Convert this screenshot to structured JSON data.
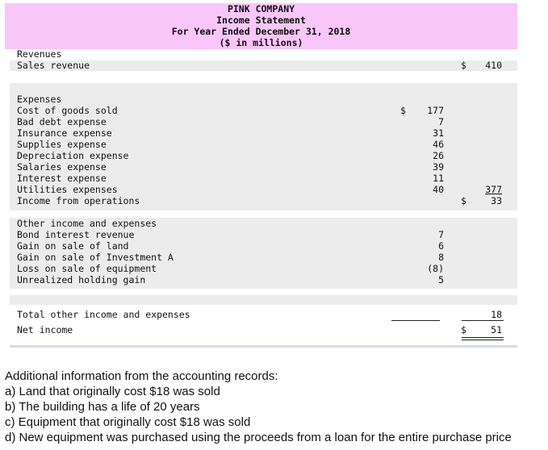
{
  "header": {
    "company": "PINK COMPANY",
    "title": "Income Statement",
    "period": "For Year Ended December 31, 2018",
    "units": "($ in millions)"
  },
  "revenues": {
    "section_label": "Revenues",
    "sales_label": "Sales revenue",
    "sales_currency": "$",
    "sales_value": "410"
  },
  "expenses": {
    "section_label": "Expenses",
    "first_currency": "$",
    "items": [
      {
        "label": "Cost of goods sold",
        "value": "177"
      },
      {
        "label": "Bad debt expense",
        "value": "7"
      },
      {
        "label": "Insurance expense",
        "value": "31"
      },
      {
        "label": "Supplies expense",
        "value": "46"
      },
      {
        "label": "Depreciation expense",
        "value": "26"
      },
      {
        "label": "Salaries expense",
        "value": "39"
      },
      {
        "label": "Interest expense",
        "value": "11"
      },
      {
        "label": "Utilities expenses",
        "value": "40"
      }
    ],
    "total_value": "377",
    "operations_label": "Income from operations",
    "operations_currency": "$",
    "operations_value": "33"
  },
  "other": {
    "section_label": "Other income and expenses",
    "items": [
      {
        "label": "Bond interest revenue",
        "value": "7"
      },
      {
        "label": "Gain on sale of land",
        "value": "6"
      },
      {
        "label": "Gain on sale of Investment A",
        "value": "8"
      },
      {
        "label": "Loss on sale of equipment",
        "value": "(8)"
      },
      {
        "label": "Unrealized holding gain",
        "value": "5"
      }
    ],
    "total_label": "Total other income and expenses",
    "total_value": "18",
    "net_label": "Net income",
    "net_currency": "$",
    "net_value": "51"
  },
  "notes": {
    "intro": "Additional information from the accounting records:",
    "items": [
      "a) Land that originally cost $18 was sold",
      "b) The building has a life of 20 years",
      "c) Equipment that originally cost $18 was sold",
      "d) New equipment was purchased using the proceeds from a loan for the entire purchase price"
    ]
  },
  "colors": {
    "header_bg": "#f8c6f8",
    "band_bg": "#ececec"
  }
}
